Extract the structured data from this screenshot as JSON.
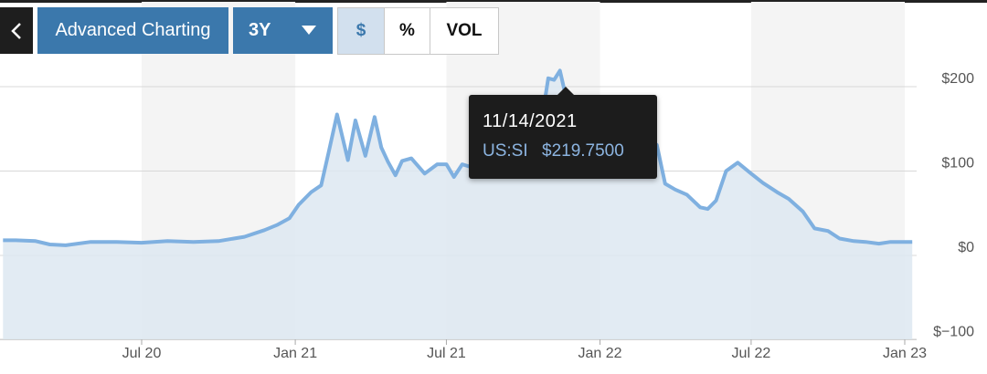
{
  "toolbar": {
    "advanced_label": "Advanced Charting",
    "range_label": "3Y",
    "mode_dollar": "$",
    "mode_percent": "%",
    "mode_volume": "VOL",
    "active_mode": "$"
  },
  "tooltip": {
    "date": "11/14/2021",
    "symbol": "US:SI",
    "value": "$219.7500"
  },
  "colors": {
    "line": "#7fb0e0",
    "area": "#dde7f1",
    "button": "#3b78ac",
    "tooltip_bg": "#1c1c1c"
  },
  "chart_data": {
    "type": "area",
    "symbol": "US:SI",
    "x_ticks": [
      "Jul 20",
      "Jan 21",
      "Jul 21",
      "Jan 22",
      "Jul 22",
      "Jan 23"
    ],
    "x_tick_dates": [
      "2020-07-01",
      "2021-01-01",
      "2021-07-01",
      "2022-01-01",
      "2022-07-01",
      "2023-01-01"
    ],
    "y_ticks": [
      200,
      100,
      0,
      -100
    ],
    "y_tick_labels": [
      "$200",
      "$100",
      "$0",
      "$−100"
    ],
    "ylim": [
      -100,
      210
    ],
    "grid": true,
    "x": [
      "2020-01-17",
      "2020-02-01",
      "2020-02-25",
      "2020-03-13",
      "2020-04-01",
      "2020-05-01",
      "2020-06-01",
      "2020-07-01",
      "2020-08-01",
      "2020-09-01",
      "2020-10-01",
      "2020-11-01",
      "2020-11-25",
      "2020-12-10",
      "2020-12-25",
      "2021-01-05",
      "2021-01-20",
      "2021-02-01",
      "2021-02-10",
      "2021-02-20",
      "2021-03-05",
      "2021-03-14",
      "2021-03-26",
      "2021-04-06",
      "2021-04-14",
      "2021-04-22",
      "2021-05-01",
      "2021-05-09",
      "2021-05-20",
      "2021-06-05",
      "2021-06-20",
      "2021-07-01",
      "2021-07-10",
      "2021-07-20",
      "2021-08-05",
      "2021-08-20",
      "2021-09-15",
      "2021-10-15",
      "2021-10-31",
      "2021-11-07",
      "2021-11-14",
      "2021-11-20",
      "2021-12-01",
      "2021-12-15",
      "2022-01-01",
      "2022-01-15",
      "2022-02-01",
      "2022-02-15",
      "2022-03-01",
      "2022-03-10",
      "2022-03-20",
      "2022-04-01",
      "2022-04-15",
      "2022-05-01",
      "2022-05-10",
      "2022-05-20",
      "2022-06-01",
      "2022-06-15",
      "2022-07-01",
      "2022-07-15",
      "2022-08-01",
      "2022-08-15",
      "2022-09-01",
      "2022-09-15",
      "2022-10-01",
      "2022-10-15",
      "2022-11-01",
      "2022-11-15",
      "2022-12-01",
      "2022-12-15",
      "2023-01-01",
      "2023-01-10"
    ],
    "values": [
      18,
      18,
      17,
      13,
      12,
      16,
      16,
      15,
      17,
      16,
      17,
      22,
      30,
      36,
      44,
      60,
      75,
      83,
      122,
      167,
      113,
      160,
      118,
      164,
      128,
      111,
      95,
      112,
      115,
      97,
      108,
      108,
      93,
      108,
      103,
      107,
      100,
      108,
      210,
      208,
      219,
      193,
      155,
      140,
      128,
      122,
      116,
      148,
      124,
      131,
      85,
      78,
      72,
      57,
      55,
      65,
      100,
      110,
      97,
      86,
      75,
      67,
      52,
      32,
      29,
      20,
      17,
      16,
      14,
      16,
      16,
      16
    ]
  }
}
